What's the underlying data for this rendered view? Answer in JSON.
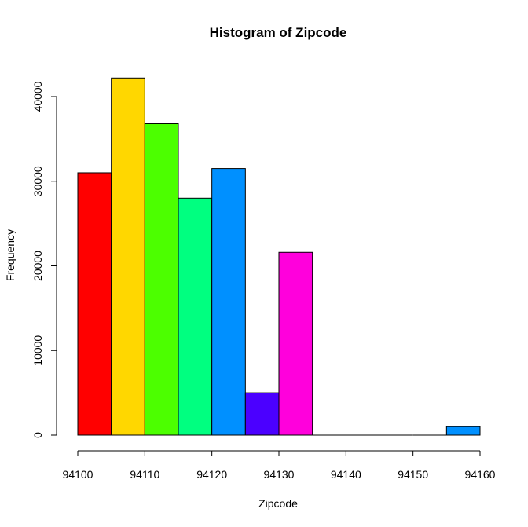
{
  "chart_data": {
    "type": "bar",
    "title": "Histogram of Zipcode",
    "xlabel": "Zipcode",
    "ylabel": "Frequency",
    "bins": [
      {
        "x0": 94100,
        "x1": 94105,
        "count": 31000,
        "color": "#FF0000"
      },
      {
        "x0": 94105,
        "x1": 94110,
        "count": 42200,
        "color": "#FFD700"
      },
      {
        "x0": 94110,
        "x1": 94115,
        "count": 36800,
        "color": "#4CFF00"
      },
      {
        "x0": 94115,
        "x1": 94120,
        "count": 28000,
        "color": "#00FF80"
      },
      {
        "x0": 94120,
        "x1": 94125,
        "count": 31500,
        "color": "#0090FF"
      },
      {
        "x0": 94125,
        "x1": 94130,
        "count": 5000,
        "color": "#4B00FF"
      },
      {
        "x0": 94130,
        "x1": 94135,
        "count": 21600,
        "color": "#FF00DC"
      },
      {
        "x0": 94135,
        "x1": 94140,
        "count": 0,
        "color": "#FF0000"
      },
      {
        "x0": 94140,
        "x1": 94145,
        "count": 0,
        "color": "#FFD700"
      },
      {
        "x0": 94145,
        "x1": 94150,
        "count": 0,
        "color": "#4CFF00"
      },
      {
        "x0": 94150,
        "x1": 94155,
        "count": 0,
        "color": "#00FF80"
      },
      {
        "x0": 94155,
        "x1": 94160,
        "count": 1000,
        "color": "#0090FF"
      }
    ],
    "xlim": [
      94100,
      94160
    ],
    "ylim": [
      0,
      43000
    ],
    "x_ticks": [
      94100,
      94110,
      94120,
      94130,
      94140,
      94150,
      94160
    ],
    "y_ticks": [
      0,
      10000,
      20000,
      30000,
      40000
    ],
    "grid": false,
    "legend": "none"
  }
}
